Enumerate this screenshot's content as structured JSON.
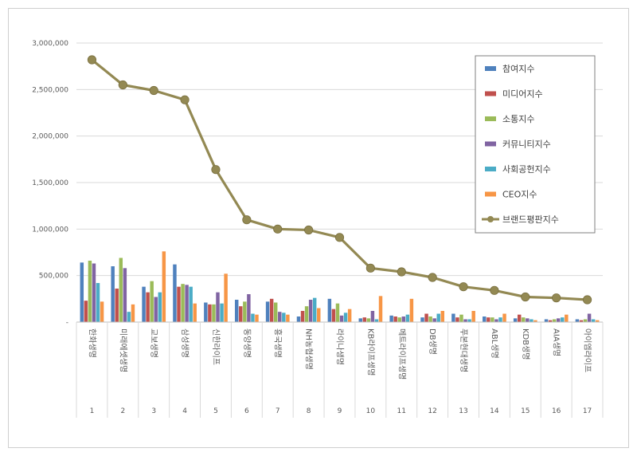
{
  "chart_data": {
    "type": "bar",
    "categories": [
      "한화생명",
      "미래에셋생명",
      "교보생명",
      "삼성생명",
      "신한라이프",
      "동양생명",
      "흥국생명",
      "NH농협생명",
      "라이나생명",
      "KB라이프생명",
      "메트라이프생명",
      "DB생명",
      "푸본현대생명",
      "ABL생명",
      "KDB생명",
      "AIA생명",
      "아이엠라이프"
    ],
    "ranks": [
      "1",
      "2",
      "3",
      "4",
      "5",
      "6",
      "7",
      "8",
      "9",
      "10",
      "11",
      "12",
      "13",
      "14",
      "15",
      "16",
      "17"
    ],
    "yticks": [
      "-",
      "500,000",
      "1,000,000",
      "1,500,000",
      "2,000,000",
      "2,500,000",
      "3,000,000"
    ],
    "ylim": [
      0,
      3000000
    ],
    "grid": true,
    "legend_position": "right",
    "series": [
      {
        "name": "참여지수",
        "color": "#4f81bd",
        "values": [
          640000,
          600000,
          380000,
          620000,
          210000,
          240000,
          220000,
          60000,
          250000,
          40000,
          70000,
          50000,
          90000,
          60000,
          40000,
          30000,
          30000
        ]
      },
      {
        "name": "미디어지수",
        "color": "#c0504d",
        "values": [
          230000,
          360000,
          320000,
          380000,
          190000,
          170000,
          250000,
          120000,
          140000,
          50000,
          60000,
          90000,
          50000,
          50000,
          80000,
          20000,
          20000
        ]
      },
      {
        "name": "소통지수",
        "color": "#9bbb59",
        "values": [
          660000,
          690000,
          440000,
          410000,
          190000,
          220000,
          210000,
          170000,
          200000,
          40000,
          50000,
          60000,
          80000,
          50000,
          50000,
          30000,
          30000
        ]
      },
      {
        "name": "커뮤니티지수",
        "color": "#8064a2",
        "values": [
          630000,
          580000,
          270000,
          400000,
          320000,
          300000,
          110000,
          240000,
          70000,
          120000,
          60000,
          40000,
          30000,
          30000,
          40000,
          40000,
          90000
        ]
      },
      {
        "name": "사회공헌지수",
        "color": "#4bacc6",
        "values": [
          420000,
          110000,
          320000,
          380000,
          200000,
          90000,
          100000,
          260000,
          100000,
          30000,
          80000,
          90000,
          30000,
          50000,
          30000,
          50000,
          30000
        ]
      },
      {
        "name": "CEO지수",
        "color": "#f79646",
        "values": [
          220000,
          190000,
          760000,
          200000,
          520000,
          80000,
          80000,
          150000,
          140000,
          280000,
          250000,
          120000,
          120000,
          90000,
          20000,
          80000,
          20000
        ]
      }
    ],
    "line": {
      "name": "브랜드평판지수",
      "color": "#938953",
      "values": [
        2820000,
        2550000,
        2490000,
        2390000,
        1640000,
        1100000,
        1000000,
        990000,
        910000,
        580000,
        540000,
        480000,
        380000,
        340000,
        270000,
        260000,
        240000
      ]
    }
  }
}
